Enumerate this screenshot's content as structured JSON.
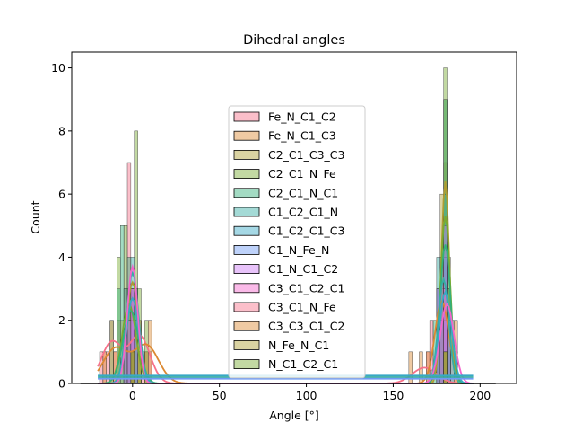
{
  "chart_data": {
    "type": "histogram",
    "title": "Dihedral angles",
    "xlabel": "Angle [°]",
    "ylabel": "Count",
    "xlim": [
      -35,
      221
    ],
    "ylim": [
      0,
      10.5
    ],
    "xticks": [
      0,
      50,
      100,
      150,
      200
    ],
    "yticks": [
      0,
      2,
      4,
      6,
      8,
      10
    ],
    "grid": false,
    "legend": "center",
    "kde": true,
    "series": [
      {
        "name": "Fe_N_C1_C2",
        "color": "#f77189",
        "bars": [
          [
            -18,
            1
          ],
          [
            -16,
            1
          ],
          [
            -14,
            1
          ],
          [
            -12,
            2
          ],
          [
            -10,
            1
          ],
          [
            -8,
            2
          ],
          [
            -4,
            3
          ],
          [
            -2,
            7
          ],
          [
            0,
            2
          ],
          [
            4,
            2
          ],
          [
            6,
            1
          ],
          [
            8,
            1
          ],
          [
            10,
            1
          ],
          [
            170,
            1
          ],
          [
            172,
            2
          ],
          [
            176,
            3
          ],
          [
            178,
            1
          ],
          [
            180,
            3
          ],
          [
            182,
            3
          ],
          [
            184,
            2
          ],
          [
            186,
            1
          ]
        ]
      },
      {
        "name": "Fe_N_C1_C3",
        "color": "#dc8932",
        "bars": [
          [
            -16,
            1
          ],
          [
            -10,
            1
          ],
          [
            -6,
            2
          ],
          [
            -2,
            3
          ],
          [
            2,
            3
          ],
          [
            4,
            2
          ],
          [
            8,
            1
          ],
          [
            10,
            2
          ],
          [
            160,
            1
          ],
          [
            166,
            1
          ],
          [
            170,
            1
          ],
          [
            176,
            2
          ],
          [
            178,
            4
          ],
          [
            180,
            7
          ],
          [
            182,
            3
          ],
          [
            186,
            2
          ]
        ]
      },
      {
        "name": "C2_C1_C3_C3",
        "color": "#ae9d31",
        "bars": [
          [
            -4,
            2
          ],
          [
            -2,
            3
          ],
          [
            0,
            2
          ],
          [
            2,
            3
          ],
          [
            4,
            1
          ],
          [
            176,
            2
          ],
          [
            178,
            6
          ],
          [
            180,
            9
          ],
          [
            182,
            4
          ]
        ]
      },
      {
        "name": "C2_C1_N_Fe",
        "color": "#77ab31",
        "bars": [
          [
            -12,
            2
          ],
          [
            -8,
            4
          ],
          [
            -4,
            5
          ],
          [
            0,
            3
          ],
          [
            2,
            8
          ],
          [
            4,
            3
          ],
          [
            8,
            2
          ],
          [
            176,
            3
          ],
          [
            178,
            4
          ],
          [
            180,
            10
          ],
          [
            182,
            3
          ]
        ]
      },
      {
        "name": "C2_C1_N_C1",
        "color": "#33b07a",
        "bars": [
          [
            -8,
            3
          ],
          [
            -6,
            5
          ],
          [
            -2,
            4
          ],
          [
            0,
            3
          ],
          [
            2,
            2
          ],
          [
            174,
            2
          ],
          [
            178,
            4
          ],
          [
            180,
            9
          ],
          [
            182,
            3
          ]
        ]
      },
      {
        "name": "C1_C2_C1_N",
        "color": "#36ada4",
        "bars": [
          [
            -4,
            3
          ],
          [
            0,
            4
          ],
          [
            2,
            3
          ],
          [
            176,
            4
          ],
          [
            178,
            3
          ],
          [
            180,
            6
          ],
          [
            184,
            2
          ]
        ]
      },
      {
        "name": "C1_C2_C1_C3",
        "color": "#38a9c5",
        "bars": [
          [
            -2,
            2
          ],
          [
            0,
            3
          ],
          [
            176,
            3
          ],
          [
            180,
            4
          ],
          [
            182,
            2
          ]
        ]
      },
      {
        "name": "C1_N_Fe_N",
        "color": "#6e9bf4",
        "bars": [
          [
            -2,
            1
          ],
          [
            0,
            2
          ],
          [
            178,
            2
          ],
          [
            180,
            2
          ]
        ]
      },
      {
        "name": "C1_N_C1_C2",
        "color": "#cc7af4",
        "bars": [
          [
            -4,
            2
          ],
          [
            0,
            3
          ],
          [
            2,
            2
          ],
          [
            176,
            3
          ],
          [
            180,
            5
          ],
          [
            182,
            2
          ]
        ]
      },
      {
        "name": "C3_C1_C2_C1",
        "color": "#f565cc",
        "bars": [
          [
            -2,
            2
          ],
          [
            0,
            3
          ],
          [
            178,
            4
          ],
          [
            180,
            3
          ]
        ]
      },
      {
        "name": "C3_C1_N_Fe",
        "color": "#f77189",
        "bars": [
          [
            0,
            1
          ],
          [
            180,
            1
          ]
        ]
      },
      {
        "name": "C3_C3_C1_C2",
        "color": "#dc8932",
        "bars": [
          [
            0,
            1
          ],
          [
            180,
            1
          ]
        ]
      },
      {
        "name": "N_Fe_N_C1",
        "color": "#ae9d31",
        "bars": [
          [
            0,
            1
          ],
          [
            180,
            1
          ]
        ]
      },
      {
        "name": "N_C1_C2_C1",
        "color": "#77ab31",
        "bars": [
          [
            0,
            1
          ],
          [
            180,
            1
          ]
        ]
      }
    ],
    "kde_curves": [
      {
        "color": "#f77189",
        "peaks": [
          [
            -12,
            1.3,
            6
          ],
          [
            4,
            1.5,
            6
          ],
          [
            168,
            0.5,
            7
          ]
        ]
      },
      {
        "color": "#dc8932",
        "peaks": [
          [
            -10,
            1.1,
            7
          ],
          [
            8,
            1.2,
            7
          ],
          [
            178,
            2.6,
            4
          ]
        ]
      },
      {
        "color": "#ae9d31",
        "peaks": [
          [
            0,
            3.2,
            3.5
          ],
          [
            180,
            6.4,
            2.3
          ]
        ]
      },
      {
        "color": "#77ab31",
        "peaks": [
          [
            -2,
            2.5,
            4
          ],
          [
            180,
            5.3,
            2.8
          ]
        ]
      },
      {
        "color": "#33b07a",
        "peaks": [
          [
            -1,
            2.3,
            4.5
          ],
          [
            180,
            4.4,
            3
          ]
        ]
      },
      {
        "color": "#36ada4",
        "peaks": [
          [
            0,
            3.5,
            3.5
          ],
          [
            179,
            3.3,
            3
          ]
        ]
      },
      {
        "color": "#38a9c5",
        "peaks": [
          [
            0,
            2.7,
            3.5
          ],
          [
            180,
            2.9,
            3.5
          ]
        ]
      },
      {
        "color": "#f565cc",
        "peaks": [
          [
            0,
            3.7,
            3
          ],
          [
            181,
            2.5,
            4
          ]
        ]
      }
    ]
  }
}
